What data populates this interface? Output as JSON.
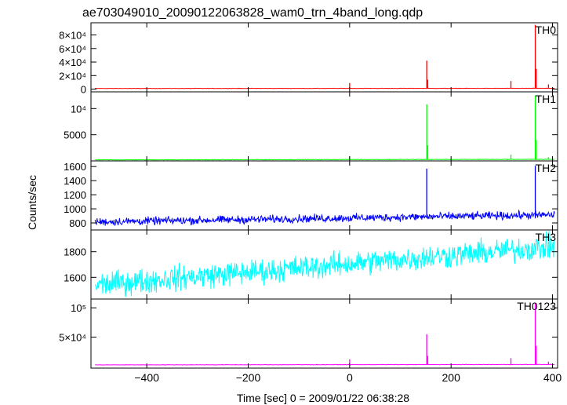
{
  "title": "ae703049010_20090122063828_wam0_trn_4band_long.qdp",
  "xlabel": "Time [sec] 0 = 2009/01/22 06:38:28",
  "ylabel": "Counts/sec",
  "chart_data": {
    "type": "line",
    "x_range": [
      -510,
      410
    ],
    "x_ticks": [
      {
        "value": -400,
        "label": "−400"
      },
      {
        "value": -200,
        "label": "−200"
      },
      {
        "value": 0,
        "label": "0"
      },
      {
        "value": 200,
        "label": "200"
      },
      {
        "value": 400,
        "label": "400"
      }
    ],
    "panels": [
      {
        "name": "TH0",
        "color": "#ff0000",
        "ylim": [
          -4000,
          98000
        ],
        "baseline_start": 1000,
        "baseline_end": 1200,
        "noise": 300,
        "y_ticks": [
          {
            "value": 0,
            "label": "0"
          },
          {
            "value": 20000,
            "label": "2×10⁴"
          },
          {
            "value": 40000,
            "label": "4×10⁴"
          },
          {
            "value": 60000,
            "label": "6×10⁴"
          },
          {
            "value": 80000,
            "label": "8×10⁴"
          }
        ],
        "spikes": [
          {
            "x": 0,
            "y": 9000
          },
          {
            "x": 152,
            "y": 42000
          },
          {
            "x": 154,
            "y": 14000
          },
          {
            "x": 318,
            "y": 12000
          },
          {
            "x": 366,
            "y": 95000
          },
          {
            "x": 368,
            "y": 30000
          },
          {
            "x": 392,
            "y": 7000
          }
        ]
      },
      {
        "name": "TH1",
        "color": "#00ff00",
        "ylim": [
          0,
          13200
        ],
        "baseline_start": 200,
        "baseline_end": 300,
        "noise": 60,
        "y_ticks": [
          {
            "value": 5000,
            "label": "5000"
          },
          {
            "value": 10000,
            "label": "10⁴"
          }
        ],
        "spikes": [
          {
            "x": 0,
            "y": 900
          },
          {
            "x": 152,
            "y": 10800
          },
          {
            "x": 154,
            "y": 3000
          },
          {
            "x": 318,
            "y": 1200
          },
          {
            "x": 366,
            "y": 12500
          },
          {
            "x": 368,
            "y": 4000
          },
          {
            "x": 392,
            "y": 700
          }
        ]
      },
      {
        "name": "TH2",
        "color": "#0000ff",
        "ylim": [
          700,
          1680
        ],
        "baseline_start": 815,
        "baseline_end": 915,
        "noise": 55,
        "y_ticks": [
          {
            "value": 800,
            "label": "800"
          },
          {
            "value": 1000,
            "label": "1000"
          },
          {
            "value": 1200,
            "label": "1200"
          },
          {
            "value": 1400,
            "label": "1400"
          },
          {
            "value": 1600,
            "label": "1600"
          }
        ],
        "spikes": [
          {
            "x": 152,
            "y": 1570
          },
          {
            "x": 366,
            "y": 1610
          }
        ]
      },
      {
        "name": "TH3",
        "color": "#00ffff",
        "ylim": [
          1430,
          1970
        ],
        "baseline_start": 1540,
        "baseline_end": 1840,
        "noise": 95,
        "y_ticks": [
          {
            "value": 1600,
            "label": "1600"
          },
          {
            "value": 1800,
            "label": "1800"
          }
        ],
        "spikes": []
      },
      {
        "name": "TH0123",
        "color": "#ff00ff",
        "ylim": [
          -3000,
          115000
        ],
        "baseline_start": 2500,
        "baseline_end": 3200,
        "noise": 400,
        "y_ticks": [
          {
            "value": 50000,
            "label": "5×10⁴"
          },
          {
            "value": 100000,
            "label": "10⁵"
          }
        ],
        "spikes": [
          {
            "x": 0,
            "y": 12000
          },
          {
            "x": 152,
            "y": 55000
          },
          {
            "x": 154,
            "y": 18000
          },
          {
            "x": 318,
            "y": 14000
          },
          {
            "x": 366,
            "y": 108000
          },
          {
            "x": 368,
            "y": 35000
          },
          {
            "x": 392,
            "y": 8000
          }
        ]
      }
    ]
  }
}
